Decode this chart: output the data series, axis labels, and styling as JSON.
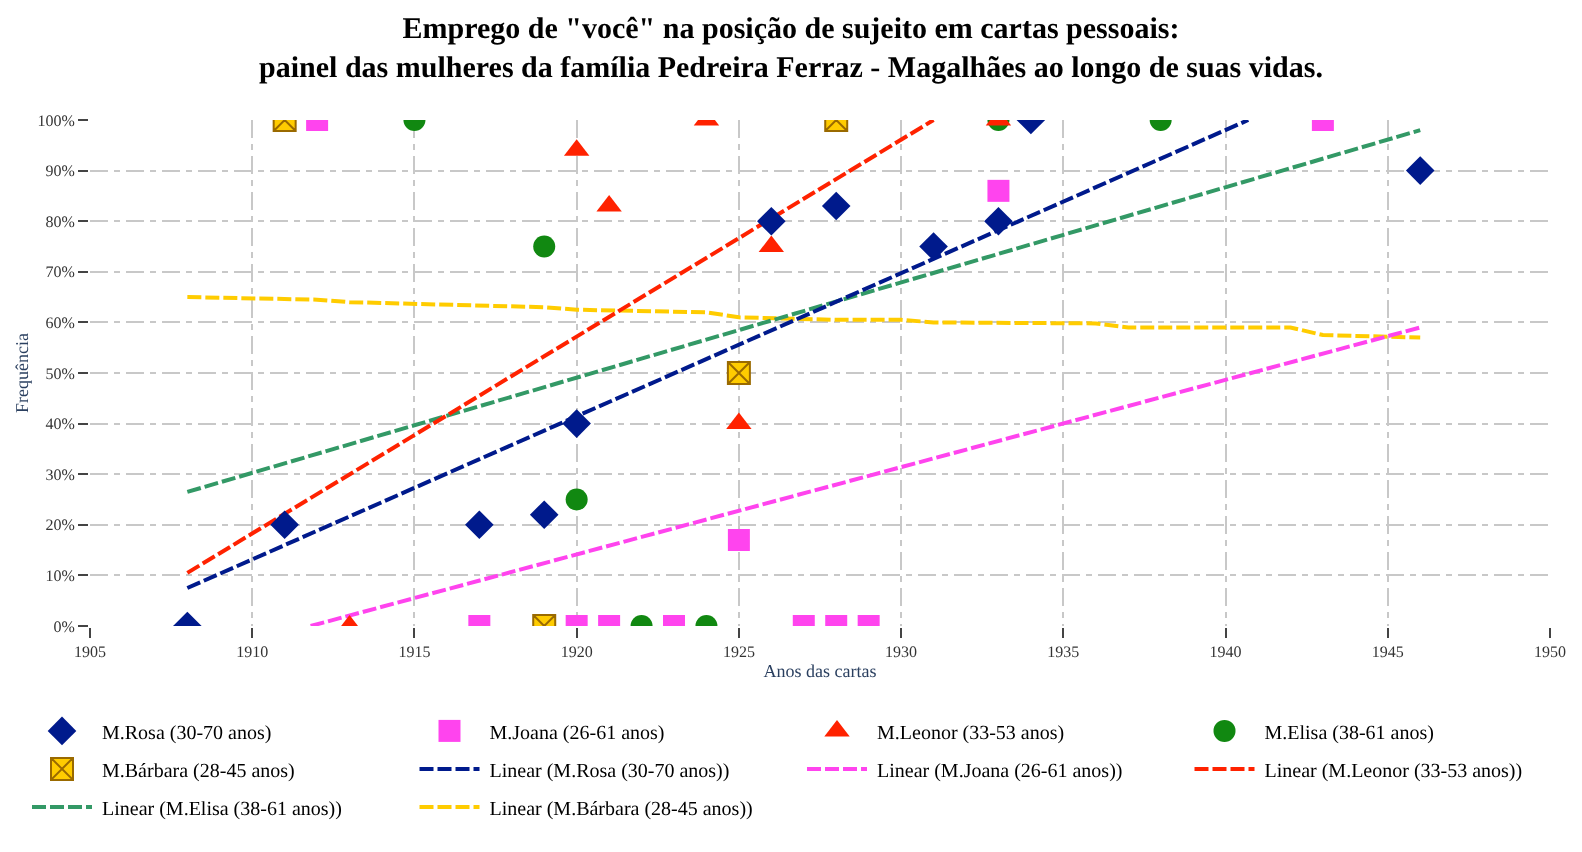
{
  "chart_data": {
    "type": "scatter",
    "title": "Emprego de \"você\" na posição de sujeito em cartas pessoais:\npainel das mulheres da família Pedreira Ferraz - Magalhães ao longo de suas vidas.",
    "xlabel": "Anos das cartas",
    "ylabel": "Frequência",
    "xlim": [
      1905,
      1950
    ],
    "xticks": [
      1905,
      1910,
      1915,
      1920,
      1925,
      1930,
      1935,
      1940,
      1945,
      1950
    ],
    "ylim": [
      0,
      100
    ],
    "yticks": [
      {
        "value": 0,
        "label": "0%"
      },
      {
        "value": 10,
        "label": "10%"
      },
      {
        "value": 20,
        "label": "20%"
      },
      {
        "value": 30,
        "label": "30%"
      },
      {
        "value": 40,
        "label": "40%"
      },
      {
        "value": 50,
        "label": "50%"
      },
      {
        "value": 60,
        "label": "60%"
      },
      {
        "value": 70,
        "label": "70%"
      },
      {
        "value": 80,
        "label": "80%"
      },
      {
        "value": 90,
        "label": "90%"
      },
      {
        "value": 100,
        "label": "100%"
      }
    ],
    "grid": true,
    "legend": "bottom",
    "series": [
      {
        "name": "M.Rosa (30-70 anos)",
        "marker": "diamond",
        "color": "#001a8c",
        "x": [
          1908,
          1911,
          1917,
          1919,
          1920,
          1926,
          1928,
          1931,
          1933,
          1934,
          1946
        ],
        "values": [
          0,
          20,
          20,
          22,
          40,
          80,
          83,
          75,
          80,
          100,
          90
        ]
      },
      {
        "name": "M.Joana (26-61 anos)",
        "marker": "square",
        "color": "#ff44ee",
        "x": [
          1912,
          1917,
          1920,
          1921,
          1923,
          1925,
          1927,
          1928,
          1929,
          1933,
          1943
        ],
        "values": [
          100,
          0,
          0,
          0,
          0,
          17,
          0,
          0,
          0,
          86,
          100
        ]
      },
      {
        "name": "M.Leonor (33-53 anos)",
        "marker": "triangle",
        "color": "#ff2200",
        "x": [
          1913,
          1920,
          1921,
          1924,
          1925,
          1926,
          1933
        ],
        "values": [
          0,
          94,
          83,
          100,
          40,
          75,
          100
        ]
      },
      {
        "name": "M.Elisa (38-61 anos)",
        "marker": "circle",
        "color": "#118811",
        "x": [
          1915,
          1919,
          1920,
          1922,
          1924,
          1933,
          1938
        ],
        "values": [
          100,
          75,
          25,
          0,
          0,
          100,
          100
        ]
      },
      {
        "name": "M.Bárbara (28-45 anos)",
        "marker": "cross",
        "color": "#ffcc00",
        "x": [
          1911,
          1919,
          1925,
          1928
        ],
        "values": [
          100,
          0,
          50,
          100
        ]
      },
      {
        "name": "Linear (M.Rosa (30-70 anos))",
        "type": "line",
        "line_style": "dashed",
        "color": "#001a8c",
        "x": [
          1908,
          1940.7
        ],
        "values": [
          7.5,
          100
        ]
      },
      {
        "name": "Linear (M.Joana (26-61 anos))",
        "type": "line",
        "line_style": "dashed",
        "color": "#ff44ee",
        "x": [
          1911.8,
          1946
        ],
        "values": [
          0,
          59
        ]
      },
      {
        "name": "Linear (M.Leonor (33-53 anos))",
        "type": "line",
        "line_style": "dashed",
        "color": "#ff2200",
        "x": [
          1908,
          1931
        ],
        "values": [
          10.5,
          100
        ]
      },
      {
        "name": "Linear (M.Elisa (38-61 anos))",
        "type": "line",
        "line_style": "dashed",
        "color": "#339966",
        "x": [
          1908,
          1946
        ],
        "values": [
          26.5,
          98
        ]
      },
      {
        "name": "Linear (M.Bárbara (28-45 anos))",
        "type": "line",
        "line_style": "dashed",
        "color": "#ffcc00",
        "x": [
          1908,
          1912,
          1913,
          1919,
          1920,
          1924,
          1925,
          1928,
          1930,
          1931,
          1936,
          1937,
          1942,
          1943,
          1946
        ],
        "values": [
          65,
          64.5,
          64,
          63,
          62.5,
          62,
          61,
          60.5,
          60.5,
          60,
          59.8,
          59,
          59,
          57.5,
          57
        ]
      }
    ]
  }
}
